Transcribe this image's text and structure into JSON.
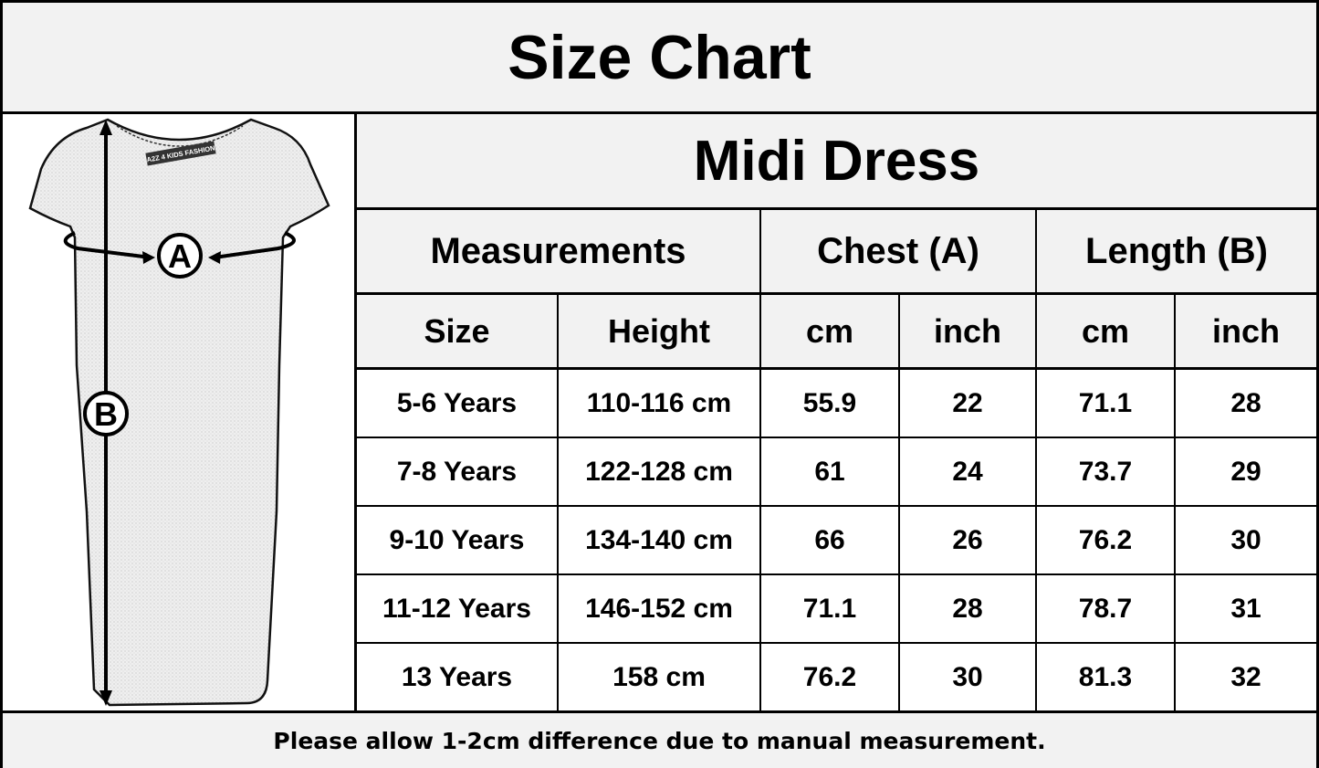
{
  "title": "Size Chart",
  "illustration": {
    "label_a": "A",
    "label_b": "B",
    "brand_tag": "A2Z 4 KIDS FASHION",
    "icon": "dress-illustration"
  },
  "product": "Midi Dress",
  "groups": {
    "measurements": "Measurements",
    "chest": "Chest (A)",
    "length": "Length (B)"
  },
  "subheaders": [
    "Size",
    "Height",
    "cm",
    "inch",
    "cm",
    "inch"
  ],
  "rows": [
    [
      "5-6 Years",
      "110-116 cm",
      "55.9",
      "22",
      "71.1",
      "28"
    ],
    [
      "7-8 Years",
      "122-128 cm",
      "61",
      "24",
      "73.7",
      "29"
    ],
    [
      "9-10 Years",
      "134-140 cm",
      "66",
      "26",
      "76.2",
      "30"
    ],
    [
      "11-12 Years",
      "146-152 cm",
      "71.1",
      "28",
      "78.7",
      "31"
    ],
    [
      "13 Years",
      "158 cm",
      "76.2",
      "30",
      "81.3",
      "32"
    ]
  ],
  "footer": "Please allow 1-2cm difference due to manual measurement.",
  "colors": {
    "header_bg": "#f2f2f2",
    "border": "#000000"
  }
}
